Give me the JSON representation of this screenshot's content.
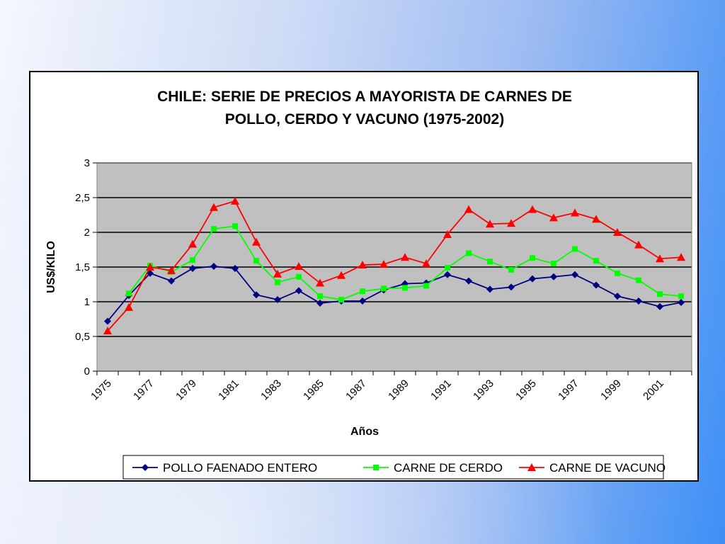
{
  "chart_data": {
    "type": "line",
    "title_lines": [
      "CHILE: SERIE DE PRECIOS A MAYORISTA DE CARNES DE",
      "POLLO, CERDO Y VACUNO (1975-2002)"
    ],
    "xlabel": "Años",
    "ylabel": "US$/KILO",
    "x_tick_labels": [
      "1975",
      "1977",
      "1979",
      "1981",
      "1983",
      "1985",
      "1987",
      "1989",
      "1991",
      "1993",
      "1995",
      "1997",
      "1999",
      "2001"
    ],
    "y_tick_labels": [
      "0",
      "0,5",
      "1",
      "1,5",
      "2",
      "2,5",
      "3"
    ],
    "ylim": [
      0,
      3
    ],
    "x": [
      1975,
      1976,
      1977,
      1978,
      1979,
      1980,
      1981,
      1982,
      1983,
      1984,
      1985,
      1986,
      1987,
      1988,
      1989,
      1990,
      1991,
      1992,
      1993,
      1994,
      1995,
      1996,
      1997,
      1998,
      1999,
      2000,
      2001,
      2002
    ],
    "grid": "horizontal",
    "plot_background": "#c0c0c0",
    "legend_position": "bottom",
    "series": [
      {
        "name": "POLLO FAENADO ENTERO",
        "color": "#000080",
        "marker": "diamond",
        "values": [
          0.72,
          1.09,
          1.41,
          1.3,
          1.48,
          1.51,
          1.48,
          1.1,
          1.03,
          1.16,
          0.98,
          1.01,
          1.01,
          1.17,
          1.26,
          1.27,
          1.39,
          1.3,
          1.18,
          1.21,
          1.33,
          1.36,
          1.39,
          1.24,
          1.08,
          1.01,
          0.93,
          0.99
        ]
      },
      {
        "name": "CARNE DE CERDO",
        "color": "#00ff00",
        "marker": "square",
        "values": [
          null,
          1.12,
          1.52,
          1.43,
          1.6,
          2.05,
          2.09,
          1.59,
          1.28,
          1.36,
          1.08,
          1.03,
          1.15,
          1.19,
          1.2,
          1.23,
          1.49,
          1.7,
          1.58,
          1.46,
          1.63,
          1.55,
          1.76,
          1.59,
          1.41,
          1.31,
          1.11,
          1.08
        ]
      },
      {
        "name": "CARNE DE VACUNO",
        "color": "#ff0000",
        "marker": "triangle",
        "values": [
          0.58,
          0.92,
          1.5,
          1.45,
          1.83,
          2.36,
          2.45,
          1.86,
          1.4,
          1.51,
          1.27,
          1.38,
          1.53,
          1.54,
          1.64,
          1.55,
          1.97,
          2.33,
          2.12,
          2.13,
          2.33,
          2.21,
          2.28,
          2.19,
          2.0,
          1.82,
          1.62,
          1.64
        ]
      }
    ]
  }
}
